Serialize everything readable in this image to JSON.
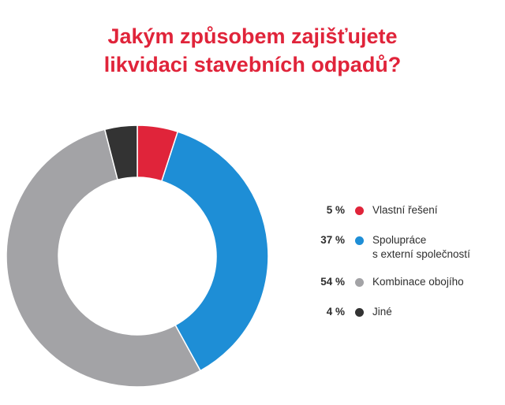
{
  "title": [
    "Jakým způsobem zajišťujete",
    "likvidaci stavebních odpadů?"
  ],
  "chart_data": {
    "type": "pie",
    "title": "Jakým způsobem zajišťujete likvidaci stavebních odpadů?",
    "slices": [
      {
        "label": "Vlastní řešení",
        "value": 5,
        "value_label": "5 %",
        "color": "#e0243a"
      },
      {
        "label": "Spolupráce s externí společností",
        "label_lines": [
          "Spolupráce",
          "s externí společností"
        ],
        "value": 37,
        "value_label": "37 %",
        "color": "#1e8ed6"
      },
      {
        "label": "Kombinace obojího",
        "value": 54,
        "value_label": "54 %",
        "color": "#a3a3a6"
      },
      {
        "label": "Jiné",
        "value": 4,
        "value_label": "4 %",
        "color": "#333333"
      }
    ],
    "donut": true,
    "legend_position": "right"
  }
}
